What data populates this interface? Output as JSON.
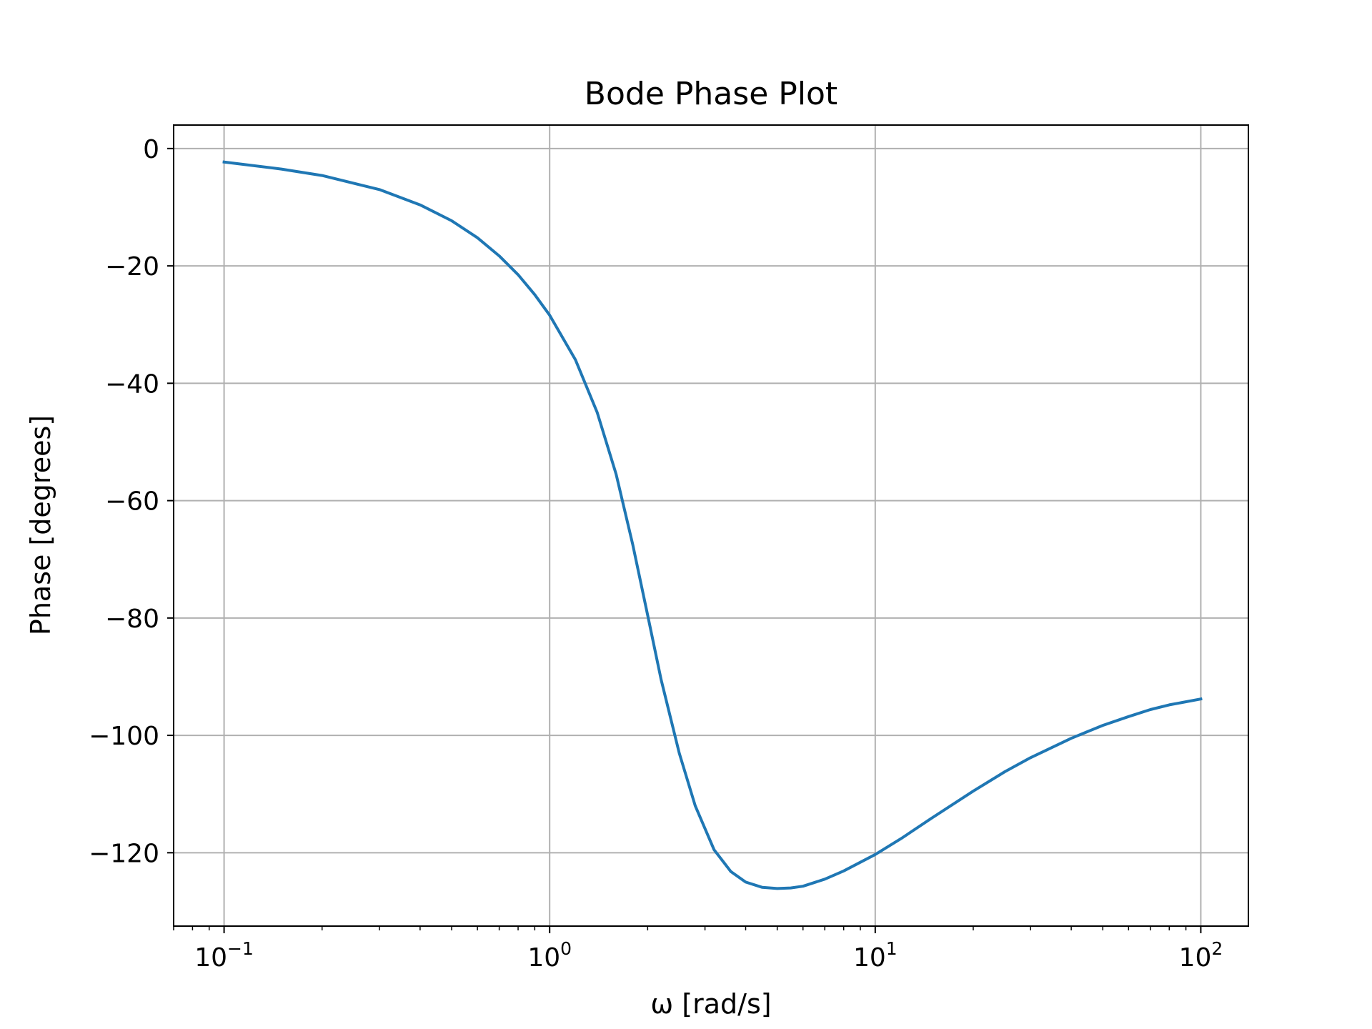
{
  "chart_data": {
    "type": "line",
    "title": "Bode Phase Plot",
    "xlabel": "ω [rad/s]",
    "ylabel": "Phase [degrees]",
    "xscale": "log",
    "xlim": [
      0.07,
      140
    ],
    "ylim": [
      -132.5,
      4
    ],
    "grid": true,
    "legend": "none",
    "x_ticks": [
      {
        "value": 0.1,
        "label_base": "10",
        "label_exp": "−1"
      },
      {
        "value": 1,
        "label_base": "10",
        "label_exp": "0"
      },
      {
        "value": 10,
        "label_base": "10",
        "label_exp": "1"
      },
      {
        "value": 100,
        "label_base": "10",
        "label_exp": "2"
      }
    ],
    "y_ticks": [
      {
        "value": 0,
        "label": "0"
      },
      {
        "value": -20,
        "label": "−20"
      },
      {
        "value": -40,
        "label": "−40"
      },
      {
        "value": -60,
        "label": "−60"
      },
      {
        "value": -80,
        "label": "−80"
      },
      {
        "value": -100,
        "label": "−100"
      },
      {
        "value": -120,
        "label": "−120"
      }
    ],
    "series": [
      {
        "color": "#1f77b4",
        "x": [
          0.1,
          0.15,
          0.2,
          0.3,
          0.4,
          0.5,
          0.6,
          0.7,
          0.8,
          0.9,
          1.0,
          1.2,
          1.4,
          1.6,
          1.8,
          2.0,
          2.2,
          2.5,
          2.8,
          3.2,
          3.6,
          4.0,
          4.5,
          5.0,
          5.5,
          6.0,
          7.0,
          8.0,
          10,
          12,
          15,
          20,
          25,
          30,
          40,
          50,
          60,
          70,
          80,
          100
        ],
        "values": [
          -2.3,
          -3.5,
          -4.6,
          -7.0,
          -9.6,
          -12.3,
          -15.2,
          -18.3,
          -21.5,
          -24.9,
          -28.4,
          -36.0,
          -45.0,
          -55.5,
          -67.5,
          -79.5,
          -90.5,
          -103.0,
          -112.0,
          -119.5,
          -123.2,
          -125.0,
          -125.9,
          -126.1,
          -126.0,
          -125.7,
          -124.5,
          -123.1,
          -120.3,
          -117.6,
          -114.0,
          -109.5,
          -106.2,
          -103.8,
          -100.5,
          -98.3,
          -96.8,
          -95.6,
          -94.8,
          -93.8
        ]
      }
    ]
  }
}
